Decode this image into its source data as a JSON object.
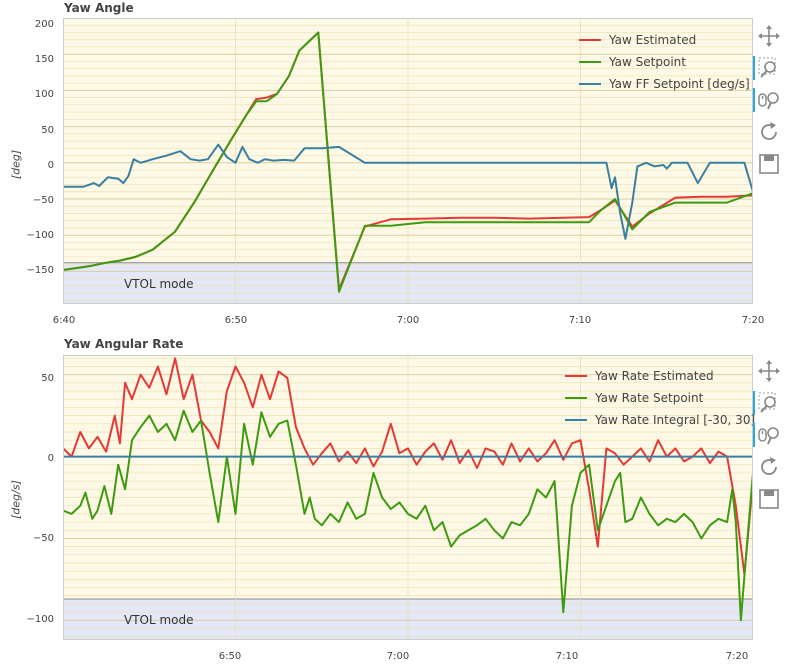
{
  "colors": {
    "estimated": "#e53935",
    "setpoint": "#3d9b12",
    "ff": "#3b7fa0",
    "plot_bg": "#fdf9e6",
    "vtol_bg": "#e4e7f7",
    "grid": "#ede3b3"
  },
  "toolbar": {
    "icons": [
      "move-icon",
      "zoom-icon",
      "wheel-zoom-icon",
      "reset-icon",
      "save-icon"
    ]
  },
  "charts": [
    {
      "title": "Yaw Angle",
      "ylabel": "[deg]",
      "vtol_label": "VTOL mode",
      "legend": [
        "Yaw Estimated",
        "Yaw Setpoint",
        "Yaw FF Setpoint [deg/s]"
      ]
    },
    {
      "title": "Yaw Angular Rate",
      "ylabel": "[deg/s]",
      "vtol_label": "VTOL mode",
      "legend": [
        "Yaw Rate Estimated",
        "Yaw Rate Setpoint",
        "Yaw Rate Integral [-30, 30]"
      ]
    }
  ],
  "chart_data": [
    {
      "type": "line",
      "title": "Yaw Angle",
      "xlabel": "",
      "ylabel": "[deg]",
      "xlim": [
        0,
        40
      ],
      "ylim": [
        -195,
        200
      ],
      "x_tick_values": [
        0,
        10,
        20,
        30,
        40
      ],
      "x_tick_labels": [
        "6:40",
        "6:50",
        "7:00",
        "7:10",
        "7:20"
      ],
      "y_ticks": [
        -150,
        -100,
        -50,
        0,
        50,
        100,
        150,
        200
      ],
      "minor_grid_step": 10,
      "vtol_band": [
        -195,
        -138
      ],
      "legend_position": "top-right",
      "series": [
        {
          "name": "Yaw Estimated",
          "color_key": "estimated",
          "x": [
            0,
            1.5,
            2.5,
            3.3,
            4.2,
            5.2,
            6.5,
            7.6,
            8.7,
            9.7,
            10.6,
            11.2,
            11.8,
            12.4,
            13.1,
            13.7,
            14.8,
            16.0,
            17.5,
            19.0,
            21.0,
            23.0,
            25.0,
            27.0,
            29.0,
            30.5,
            31.2,
            32.0,
            33.0,
            34.0,
            35.5,
            37.0,
            38.5,
            40
          ],
          "y": [
            -148,
            -143,
            -138,
            -135,
            -130,
            -120,
            -95,
            -55,
            -10,
            30,
            65,
            88,
            90,
            95,
            120,
            155,
            180,
            -175,
            -88,
            -78,
            -77,
            -76,
            -76,
            -77,
            -76,
            -75,
            -65,
            -52,
            -88,
            -70,
            -48,
            -47,
            -47,
            -45
          ]
        },
        {
          "name": "Yaw Setpoint",
          "color_key": "setpoint",
          "x": [
            0,
            1.5,
            2.5,
            3.3,
            4.2,
            5.2,
            6.5,
            7.6,
            8.7,
            9.7,
            10.6,
            11.2,
            11.8,
            12.4,
            13.1,
            13.7,
            14.8,
            16.0,
            17.5,
            19.0,
            21.0,
            23.0,
            25.0,
            27.0,
            29.0,
            30.5,
            31.2,
            32.0,
            33.0,
            34.0,
            35.5,
            37.0,
            38.5,
            40
          ],
          "y": [
            -148,
            -143,
            -138,
            -135,
            -130,
            -120,
            -95,
            -55,
            -10,
            30,
            65,
            85,
            85,
            95,
            120,
            155,
            180,
            -178,
            -87,
            -87,
            -82,
            -82,
            -82,
            -82,
            -82,
            -82,
            -65,
            -50,
            -92,
            -68,
            -55,
            -55,
            -55,
            -42
          ]
        },
        {
          "name": "Yaw FF Setpoint [deg/s]",
          "color_key": "ff",
          "x": [
            0,
            1.2,
            1.8,
            2.1,
            2.6,
            3.2,
            3.5,
            3.8,
            4.1,
            4.5,
            5.2,
            6.0,
            6.8,
            7.4,
            7.9,
            8.4,
            9.0,
            9.5,
            10.0,
            10.4,
            10.8,
            11.3,
            11.7,
            12.2,
            12.8,
            13.4,
            14.0,
            14.5,
            15.0,
            16.0,
            17.5,
            18.4,
            18.7,
            19.0,
            19.3,
            19.5,
            20,
            22,
            24,
            26,
            28,
            30,
            31.0,
            31.5,
            31.8,
            32.0,
            32.3,
            32.6,
            33.0,
            33.3,
            33.8,
            34.3,
            34.8,
            35.0,
            35.3,
            35.7,
            36.2,
            36.8,
            37.5,
            38.0,
            38.5,
            39.0,
            39.5,
            40
          ],
          "y": [
            -33,
            -33,
            -28,
            -32,
            -20,
            -22,
            -28,
            -18,
            5,
            0,
            5,
            10,
            16,
            5,
            3,
            5,
            25,
            8,
            0,
            22,
            5,
            0,
            5,
            3,
            4,
            3,
            20,
            20,
            20,
            22,
            0,
            0,
            0,
            0,
            0,
            0,
            0,
            0,
            0,
            0,
            0,
            0,
            0,
            0,
            -35,
            -20,
            -70,
            -105,
            -55,
            -5,
            0,
            -5,
            -3,
            -8,
            0,
            0,
            0,
            -28,
            0,
            0,
            0,
            0,
            0,
            -40
          ]
        }
      ]
    },
    {
      "type": "line",
      "title": "Yaw Angular Rate",
      "xlabel": "",
      "ylabel": "[deg/s]",
      "xlim": [
        0,
        40
      ],
      "ylim": [
        -112,
        62
      ],
      "x_tick_values": [
        10,
        20,
        30,
        40
      ],
      "x_tick_labels": [
        "6:50",
        "7:00",
        "7:10",
        "7:20"
      ],
      "y_ticks": [
        -100,
        -50,
        0,
        50
      ],
      "minor_grid_step": 5,
      "vtol_band": [
        -112,
        -87
      ],
      "legend_position": "top-right",
      "series": [
        {
          "name": "Yaw Rate Estimated",
          "color_key": "estimated",
          "x": [
            0,
            0.5,
            1.0,
            1.5,
            2.0,
            2.5,
            3.0,
            3.3,
            3.6,
            4.0,
            4.5,
            5.0,
            5.5,
            6.0,
            6.5,
            7.0,
            7.5,
            8.0,
            8.5,
            9.0,
            9.5,
            10.0,
            10.5,
            11.0,
            11.5,
            12.0,
            12.5,
            13.0,
            13.5,
            14.0,
            14.5,
            15.0,
            15.5,
            16.0,
            16.5,
            17.0,
            17.5,
            18.0,
            18.5,
            19.0,
            19.5,
            20.0,
            20.5,
            21.0,
            21.5,
            22.0,
            22.5,
            23.0,
            23.5,
            24.0,
            24.5,
            25.0,
            25.5,
            26.0,
            26.5,
            27.0,
            27.5,
            28.0,
            28.5,
            29.0,
            29.5,
            30.0,
            30.5,
            31.0,
            31.5,
            32.0,
            32.5,
            33.0,
            33.5,
            34.0,
            34.5,
            35.0,
            35.5,
            36.0,
            36.5,
            37.0,
            37.5,
            38.0,
            38.5,
            39.0,
            39.5,
            40
          ],
          "y": [
            5,
            0,
            15,
            5,
            12,
            3,
            25,
            8,
            45,
            35,
            50,
            42,
            55,
            38,
            60,
            35,
            50,
            22,
            15,
            5,
            40,
            55,
            45,
            30,
            50,
            35,
            52,
            48,
            18,
            5,
            -5,
            2,
            8,
            -3,
            3,
            -4,
            5,
            -6,
            3,
            20,
            2,
            5,
            -5,
            3,
            8,
            -2,
            10,
            -4,
            4,
            -7,
            5,
            3,
            -5,
            8,
            -3,
            5,
            -3,
            2,
            10,
            -2,
            8,
            10,
            -20,
            -55,
            5,
            2,
            -5,
            0,
            5,
            -3,
            10,
            0,
            5,
            -3,
            0,
            5,
            -4,
            3,
            0,
            -30,
            -72,
            -15
          ]
        },
        {
          "name": "Yaw Rate Setpoint",
          "color_key": "setpoint",
          "x": [
            0,
            0.5,
            1.0,
            1.3,
            1.7,
            2.0,
            2.4,
            2.8,
            3.2,
            3.6,
            4.0,
            4.5,
            5.0,
            5.5,
            6.0,
            6.5,
            7.0,
            7.5,
            8.0,
            8.5,
            9.0,
            9.5,
            10.0,
            10.5,
            11.0,
            11.5,
            12.0,
            12.5,
            13.0,
            13.5,
            14.0,
            14.3,
            14.6,
            15.0,
            15.5,
            16.0,
            16.5,
            17.0,
            17.5,
            18.0,
            18.5,
            19.0,
            19.5,
            20.0,
            20.5,
            21.0,
            21.5,
            22.0,
            22.5,
            23.0,
            23.5,
            24.0,
            24.5,
            25.0,
            25.5,
            26.0,
            26.5,
            27.0,
            27.5,
            28.0,
            28.5,
            29.0,
            29.5,
            30.0,
            30.5,
            31.0,
            31.5,
            32.0,
            32.3,
            32.6,
            33.0,
            33.5,
            34.0,
            34.5,
            35.0,
            35.5,
            36.0,
            36.5,
            37.0,
            37.5,
            38.0,
            38.5,
            38.8,
            39.0,
            39.3,
            39.6,
            40
          ],
          "y": [
            -33,
            -35,
            -30,
            -22,
            -38,
            -33,
            -18,
            -35,
            -5,
            -20,
            10,
            18,
            25,
            15,
            20,
            10,
            28,
            15,
            22,
            -10,
            -40,
            0,
            -35,
            20,
            -5,
            27,
            12,
            20,
            22,
            -5,
            -35,
            -25,
            -38,
            -42,
            -35,
            -40,
            -28,
            -38,
            -35,
            -10,
            -25,
            -32,
            -28,
            -35,
            -38,
            -30,
            -45,
            -40,
            -55,
            -48,
            -45,
            -42,
            -38,
            -45,
            -50,
            -40,
            -42,
            -35,
            -20,
            -25,
            -15,
            -95,
            -30,
            -10,
            -5,
            -45,
            -30,
            -15,
            -10,
            -40,
            -38,
            -25,
            -35,
            -42,
            -38,
            -40,
            -35,
            -40,
            -50,
            -42,
            -38,
            -40,
            -20,
            -40,
            -100,
            -60,
            -10
          ]
        },
        {
          "name": "Yaw Rate Integral [-30, 30]",
          "color_key": "ff",
          "x": [
            0,
            40
          ],
          "y": [
            0,
            0
          ]
        }
      ]
    }
  ]
}
